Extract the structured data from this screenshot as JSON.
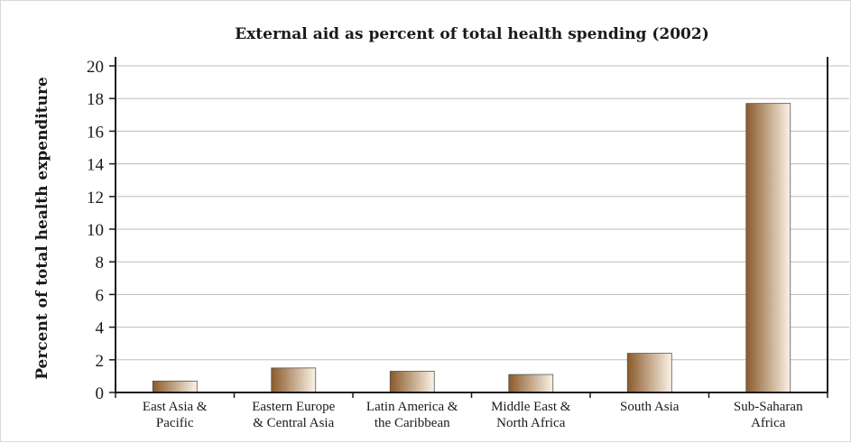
{
  "chart_data": {
    "type": "bar",
    "title": "External aid as percent of total health spending (2002)",
    "xlabel": "",
    "ylabel": "Percent of total health expenditure",
    "ylim": [
      0,
      20
    ],
    "yticks": [
      0,
      2,
      4,
      6,
      8,
      10,
      12,
      14,
      16,
      18,
      20
    ],
    "grid": true,
    "categories": [
      [
        "East Asia &",
        "Pacific"
      ],
      [
        "Eastern Europe",
        "& Central Asia"
      ],
      [
        "Latin America &",
        "the Caribbean"
      ],
      [
        "Middle East &",
        "North Africa"
      ],
      [
        "South Asia"
      ],
      [
        "Sub-Saharan",
        "Africa"
      ]
    ],
    "values": [
      0.7,
      1.5,
      1.3,
      1.1,
      2.4,
      17.7
    ],
    "colors": {
      "bar_dark": "#8a5a2b",
      "bar_light": "#fbf3e6",
      "axis": "#1a1a1a",
      "grid": "#bdbdbd"
    }
  }
}
